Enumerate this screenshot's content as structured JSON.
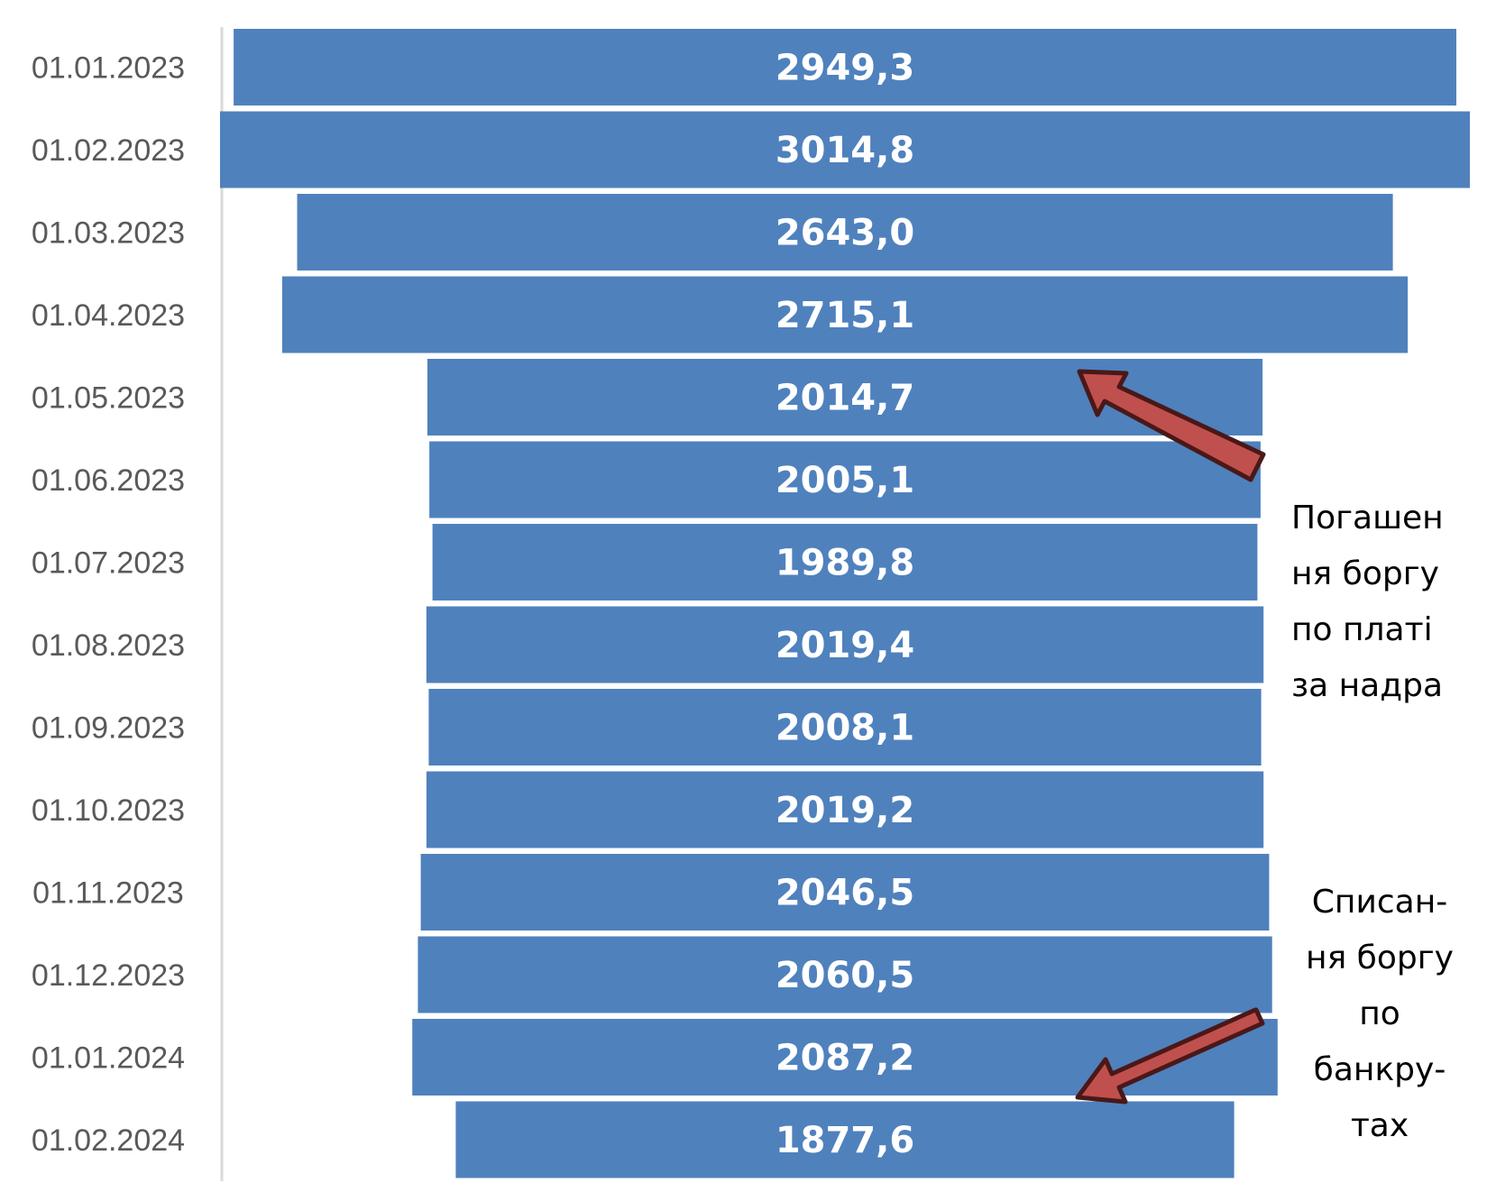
{
  "chart_data": {
    "type": "bar",
    "orientation": "horizontal",
    "style": "funnel-centered",
    "categories": [
      "01.01.2023",
      "01.02.2023",
      "01.03.2023",
      "01.04.2023",
      "01.05.2023",
      "01.06.2023",
      "01.07.2023",
      "01.08.2023",
      "01.09.2023",
      "01.10.2023",
      "01.11.2023",
      "01.12.2023",
      "01.01.2024",
      "01.02.2024"
    ],
    "values": [
      2949.3,
      3014.8,
      2643.0,
      2715.1,
      2014.7,
      2005.1,
      1989.8,
      2019.4,
      2008.1,
      2019.2,
      2046.5,
      2060.5,
      2087.2,
      1877.6
    ],
    "value_labels": [
      "2949,3",
      "3014,8",
      "2643,0",
      "2715,1",
      "2014,7",
      "2005,1",
      "1989,8",
      "2019,4",
      "2008,1",
      "2019,2",
      "2046,5",
      "2060,5",
      "2087,2",
      "1877,6"
    ],
    "title": "",
    "xlabel": "",
    "ylabel": "",
    "bar_color": "#4f81bd",
    "arrow_color": "#c0504d",
    "arrow_outline": "#4a1818",
    "legend": "none",
    "grid": false
  },
  "annotations": {
    "repayment": [
      "Погашен",
      "ня боргу",
      "по платі",
      "за надра"
    ],
    "writeoff": [
      "Списан-",
      "ня боргу",
      "по",
      "банкру-",
      "тах"
    ]
  }
}
